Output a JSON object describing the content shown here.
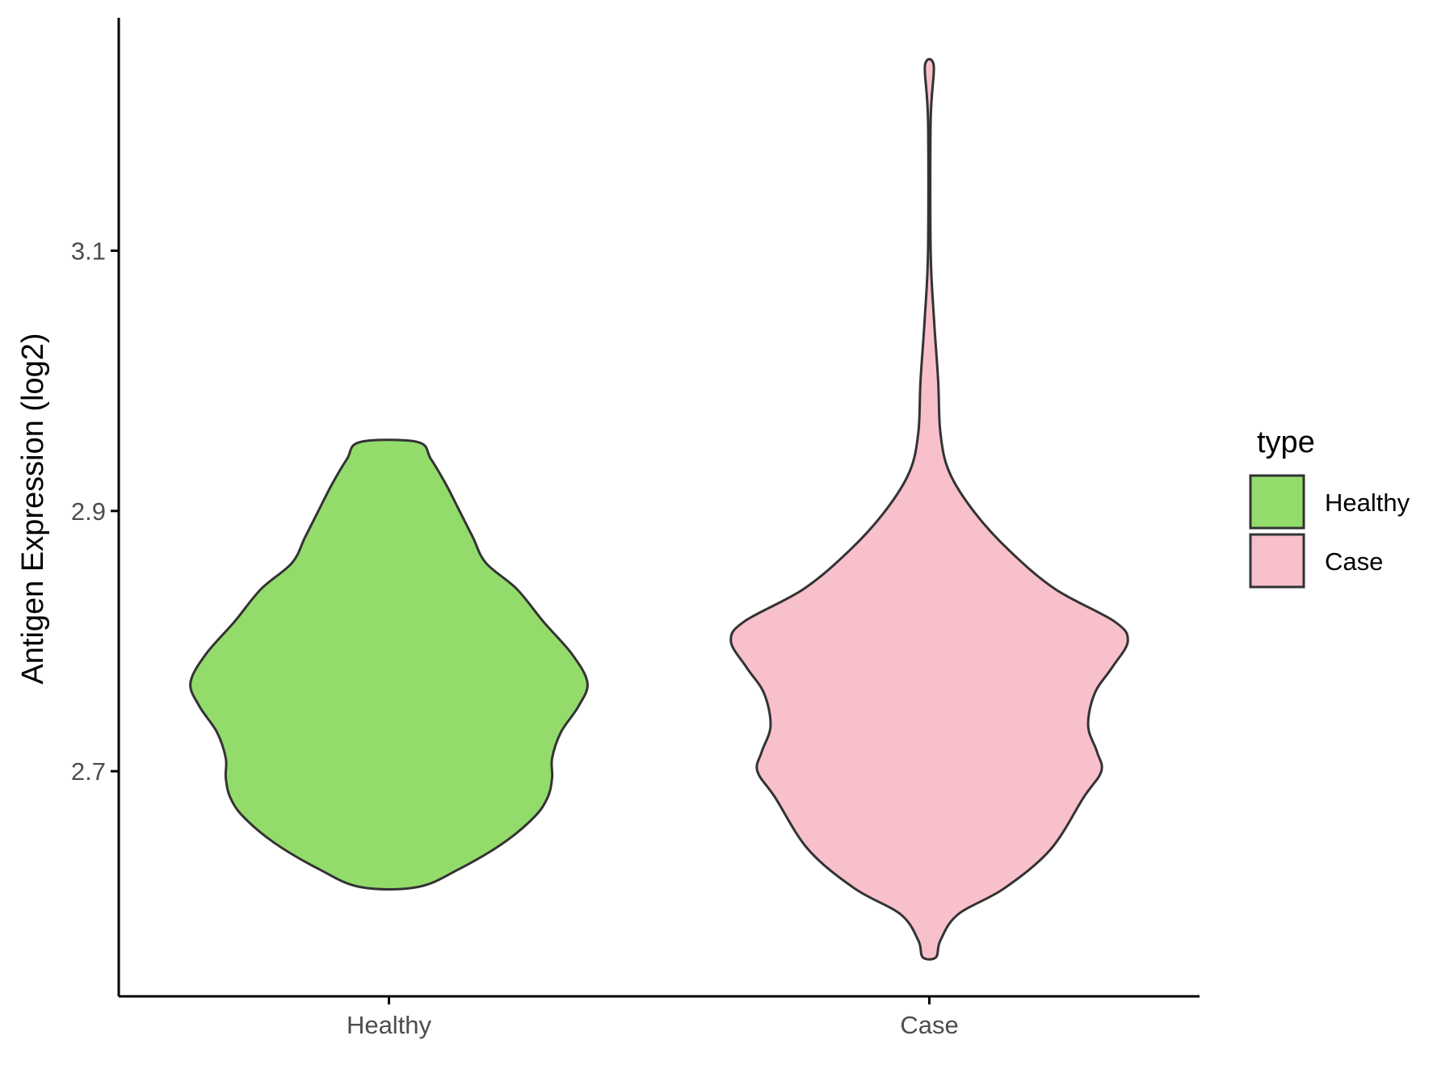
{
  "chart_data": {
    "type": "violin",
    "title": "",
    "xlabel": "",
    "ylabel": "Antigen Expression (log2)",
    "categories": [
      "Healthy",
      "Case"
    ],
    "y_ticks": [
      2.7,
      2.9,
      3.1
    ],
    "ylim": [
      2.527,
      3.279
    ],
    "grid": false,
    "legend": {
      "title": "type",
      "position": "right",
      "entries": [
        {
          "label": "Healthy",
          "color": "#93DC6C"
        },
        {
          "label": "Case",
          "color": "#F8C0CB"
        }
      ]
    },
    "series": [
      {
        "category": "Healthy",
        "color": "#93DC6C",
        "y_min": 2.611,
        "y_max": 2.953,
        "density_profile": [
          [
            2.611,
            0.13
          ],
          [
            2.625,
            0.32
          ],
          [
            2.645,
            0.52
          ],
          [
            2.665,
            0.66
          ],
          [
            2.68,
            0.72
          ],
          [
            2.695,
            0.74
          ],
          [
            2.71,
            0.74
          ],
          [
            2.73,
            0.78
          ],
          [
            2.75,
            0.86
          ],
          [
            2.768,
            0.9
          ],
          [
            2.79,
            0.83
          ],
          [
            2.815,
            0.7
          ],
          [
            2.84,
            0.58
          ],
          [
            2.86,
            0.44
          ],
          [
            2.88,
            0.38
          ],
          [
            2.9,
            0.32
          ],
          [
            2.92,
            0.26
          ],
          [
            2.94,
            0.19
          ],
          [
            2.953,
            0.13
          ]
        ]
      },
      {
        "category": "Case",
        "color": "#F8C0CB",
        "y_min": 2.557,
        "y_max": 3.242,
        "density_profile": [
          [
            2.557,
            0.03
          ],
          [
            2.57,
            0.05
          ],
          [
            2.59,
            0.13
          ],
          [
            2.61,
            0.34
          ],
          [
            2.64,
            0.55
          ],
          [
            2.68,
            0.7
          ],
          [
            2.7,
            0.78
          ],
          [
            2.715,
            0.76
          ],
          [
            2.735,
            0.72
          ],
          [
            2.76,
            0.75
          ],
          [
            2.78,
            0.83
          ],
          [
            2.8,
            0.9
          ],
          [
            2.815,
            0.84
          ],
          [
            2.84,
            0.57
          ],
          [
            2.87,
            0.36
          ],
          [
            2.9,
            0.2
          ],
          [
            2.93,
            0.09
          ],
          [
            2.96,
            0.05
          ],
          [
            3.0,
            0.04
          ],
          [
            3.05,
            0.02
          ],
          [
            3.1,
            0.006
          ],
          [
            3.2,
            0.006
          ],
          [
            3.242,
            0.02
          ]
        ]
      }
    ]
  }
}
